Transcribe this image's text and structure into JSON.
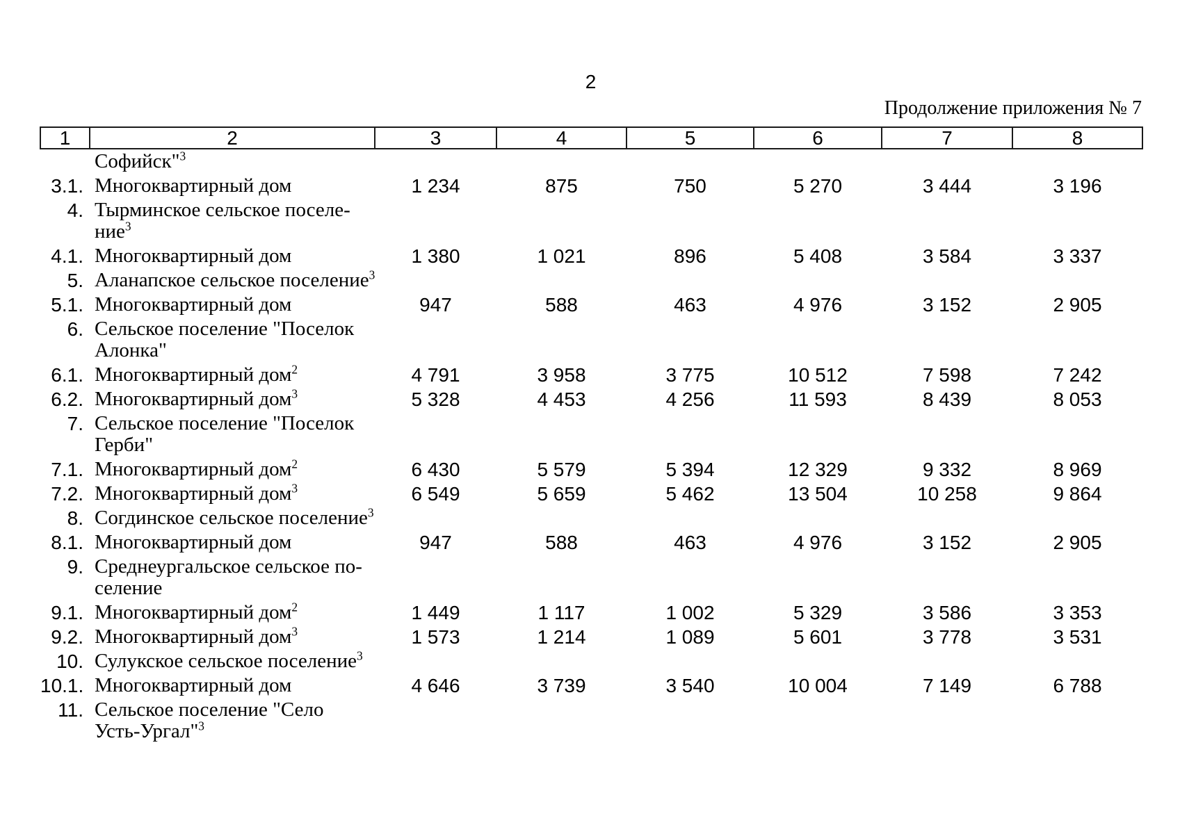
{
  "page": {
    "number": "2",
    "continuation_note": "Продолжение приложения № 7"
  },
  "table": {
    "column_headers": [
      "1",
      "2",
      "3",
      "4",
      "5",
      "6",
      "7",
      "8"
    ],
    "rows": [
      {
        "num": "",
        "name_lines": [
          {
            "text": "Софийск\"",
            "sup": "3"
          }
        ],
        "values": [
          "",
          "",
          "",
          "",
          "",
          ""
        ]
      },
      {
        "num": "3.1.",
        "name_lines": [
          {
            "text": "Многоквартирный дом"
          }
        ],
        "values": [
          "1 234",
          "875",
          "750",
          "5 270",
          "3 444",
          "3 196"
        ]
      },
      {
        "num": "4.",
        "name_lines": [
          {
            "text": "Тырминское сельское поселе-"
          },
          {
            "text": "ние",
            "sup": "3"
          }
        ],
        "values": [
          "",
          "",
          "",
          "",
          "",
          ""
        ]
      },
      {
        "num": "4.1.",
        "name_lines": [
          {
            "text": "Многоквартирный дом"
          }
        ],
        "values": [
          "1 380",
          "1 021",
          "896",
          "5 408",
          "3 584",
          "3 337"
        ]
      },
      {
        "num": "5.",
        "name_lines": [
          {
            "text": "Аланапское сельское поселение",
            "sup": "3"
          }
        ],
        "values": [
          "",
          "",
          "",
          "",
          "",
          ""
        ]
      },
      {
        "num": "5.1.",
        "name_lines": [
          {
            "text": "Многоквартирный дом"
          }
        ],
        "values": [
          "947",
          "588",
          "463",
          "4 976",
          "3 152",
          "2 905"
        ]
      },
      {
        "num": "6.",
        "name_lines": [
          {
            "text": "Сельское поселение \"Поселок"
          },
          {
            "text": "Алонка\""
          }
        ],
        "values": [
          "",
          "",
          "",
          "",
          "",
          ""
        ]
      },
      {
        "num": "6.1.",
        "name_lines": [
          {
            "text": "Многоквартирный дом",
            "sup": "2"
          }
        ],
        "values": [
          "4 791",
          "3 958",
          "3 775",
          "10 512",
          "7 598",
          "7 242"
        ]
      },
      {
        "num": "6.2.",
        "name_lines": [
          {
            "text": "Многоквартирный дом",
            "sup": "3"
          }
        ],
        "values": [
          "5 328",
          "4 453",
          "4 256",
          "11 593",
          "8 439",
          "8 053"
        ]
      },
      {
        "num": "7.",
        "name_lines": [
          {
            "text": "Сельское поселение \"Поселок"
          },
          {
            "text": "Герби\""
          }
        ],
        "values": [
          "",
          "",
          "",
          "",
          "",
          ""
        ]
      },
      {
        "num": "7.1.",
        "name_lines": [
          {
            "text": "Многоквартирный дом",
            "sup": "2"
          }
        ],
        "values": [
          "6 430",
          "5 579",
          "5 394",
          "12 329",
          "9 332",
          "8 969"
        ]
      },
      {
        "num": "7.2.",
        "name_lines": [
          {
            "text": "Многоквартирный дом",
            "sup": "3"
          }
        ],
        "values": [
          "6 549",
          "5 659",
          "5 462",
          "13 504",
          "10 258",
          "9 864"
        ]
      },
      {
        "num": "8.",
        "name_lines": [
          {
            "text": "Согдинское сельское поселение",
            "sup": "3"
          }
        ],
        "values": [
          "",
          "",
          "",
          "",
          "",
          ""
        ]
      },
      {
        "num": "8.1.",
        "name_lines": [
          {
            "text": "Многоквартирный дом"
          }
        ],
        "values": [
          "947",
          "588",
          "463",
          "4 976",
          "3 152",
          "2 905"
        ]
      },
      {
        "num": "9.",
        "name_lines": [
          {
            "text": "Среднеургальское сельское по-"
          },
          {
            "text": "селение"
          }
        ],
        "values": [
          "",
          "",
          "",
          "",
          "",
          ""
        ]
      },
      {
        "num": "9.1.",
        "name_lines": [
          {
            "text": "Многоквартирный дом",
            "sup": "2"
          }
        ],
        "values": [
          "1 449",
          "1 117",
          "1 002",
          "5 329",
          "3 586",
          "3 353"
        ]
      },
      {
        "num": "9.2.",
        "name_lines": [
          {
            "text": "Многоквартирный дом",
            "sup": "3"
          }
        ],
        "values": [
          "1 573",
          "1 214",
          "1 089",
          "5 601",
          "3 778",
          "3 531"
        ]
      },
      {
        "num": "10.",
        "name_lines": [
          {
            "text": "Сулукское сельское поселение",
            "sup": "3"
          }
        ],
        "values": [
          "",
          "",
          "",
          "",
          "",
          ""
        ]
      },
      {
        "num": "10.1.",
        "name_lines": [
          {
            "text": "Многоквартирный дом"
          }
        ],
        "values": [
          "4 646",
          "3 739",
          "3 540",
          "10 004",
          "7 149",
          "6 788"
        ]
      },
      {
        "num": "11.",
        "name_lines": [
          {
            "text": "Сельское поселение \"Село"
          },
          {
            "text": "Усть-Ургал\"",
            "sup": "3"
          }
        ],
        "values": [
          "",
          "",
          "",
          "",
          "",
          ""
        ]
      }
    ]
  }
}
